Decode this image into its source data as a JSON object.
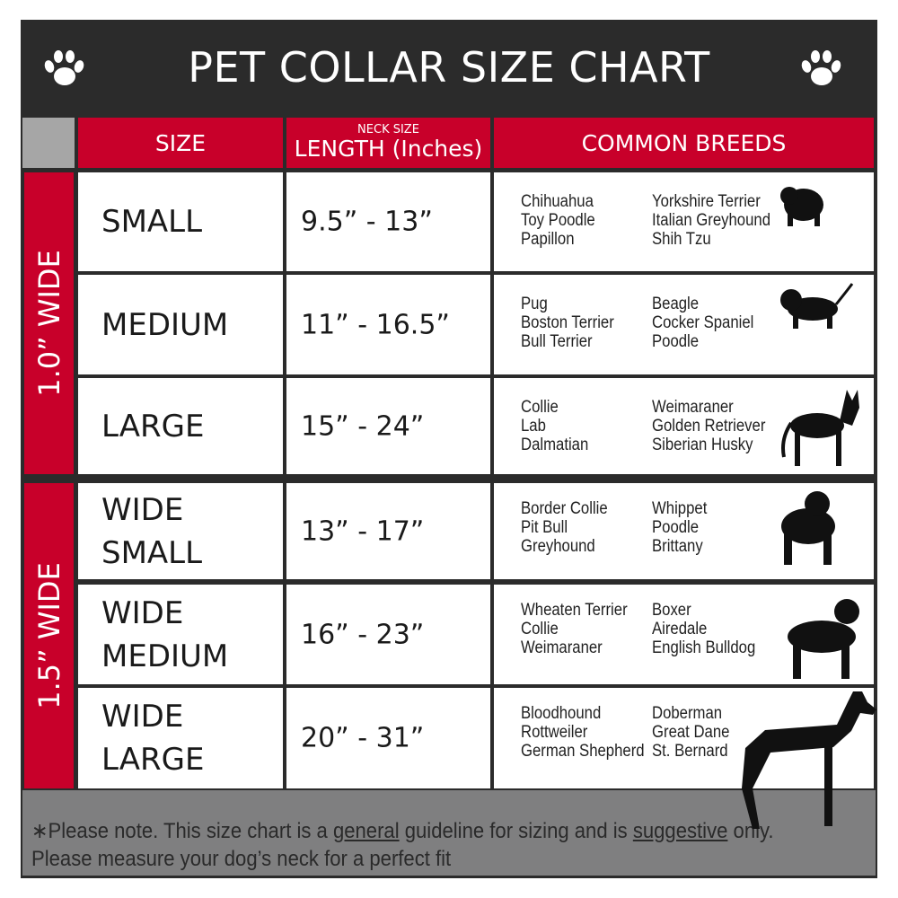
{
  "title": "PET COLLAR SIZE CHART",
  "colors": {
    "header_bg": "#2b2b2b",
    "accent_red": "#c8002a",
    "footer_gray": "#7f7f80"
  },
  "icons": {
    "corner": "paw-print-icon",
    "row": "dog-silhouette-icon"
  },
  "headers": {
    "size": "SIZE",
    "length_small": "NECK SIZE",
    "length": "LENGTH (Inches)",
    "breeds": "COMMON BREEDS"
  },
  "groups": [
    {
      "label": "1.0” WIDE"
    },
    {
      "label": "1.5” WIDE"
    }
  ],
  "rows": [
    {
      "size": "SMALL",
      "length": "9.5” - 13”",
      "breeds_a": [
        "Chihuahua",
        "Toy Poodle",
        "Papillon"
      ],
      "breeds_b": [
        "Yorkshire Terrier",
        "Italian Greyhound",
        "Shih Tzu"
      ]
    },
    {
      "size": "MEDIUM",
      "length": "11” - 16.5”",
      "breeds_a": [
        "Pug",
        "Boston Terrier",
        "Bull Terrier"
      ],
      "breeds_b": [
        "Beagle",
        "Cocker Spaniel",
        "Poodle"
      ]
    },
    {
      "size": "LARGE",
      "length": "15” - 24”",
      "breeds_a": [
        "Collie",
        "Lab",
        "Dalmatian"
      ],
      "breeds_b": [
        "Weimaraner",
        "Golden Retriever",
        "Siberian Husky"
      ]
    },
    {
      "size": "WIDE SMALL",
      "length": "13” - 17”",
      "breeds_a": [
        "Border Collie",
        "Pit Bull",
        "Greyhound"
      ],
      "breeds_b": [
        "Whippet",
        "Poodle",
        "Brittany"
      ]
    },
    {
      "size": "WIDE MEDIUM",
      "length": "16” - 23”",
      "breeds_a": [
        "Wheaten Terrier",
        "Collie",
        "Weimaraner"
      ],
      "breeds_b": [
        "Boxer",
        "Airedale",
        "English Bulldog"
      ]
    },
    {
      "size": "WIDE LARGE",
      "length": "20” - 31”",
      "breeds_a": [
        "Bloodhound",
        "Rottweiler",
        "German Shepherd"
      ],
      "breeds_b": [
        "Doberman",
        "Great Dane",
        "St. Bernard"
      ]
    }
  ],
  "footer": {
    "note_prefix": "∗Please note. This size chart is a ",
    "note_general": "general",
    "note_mid": " guideline for sizing and is ",
    "note_suggestive": "suggestive",
    "note_suffix": " only.",
    "note_line2": "Please measure your dog’s neck for a perfect fit"
  }
}
